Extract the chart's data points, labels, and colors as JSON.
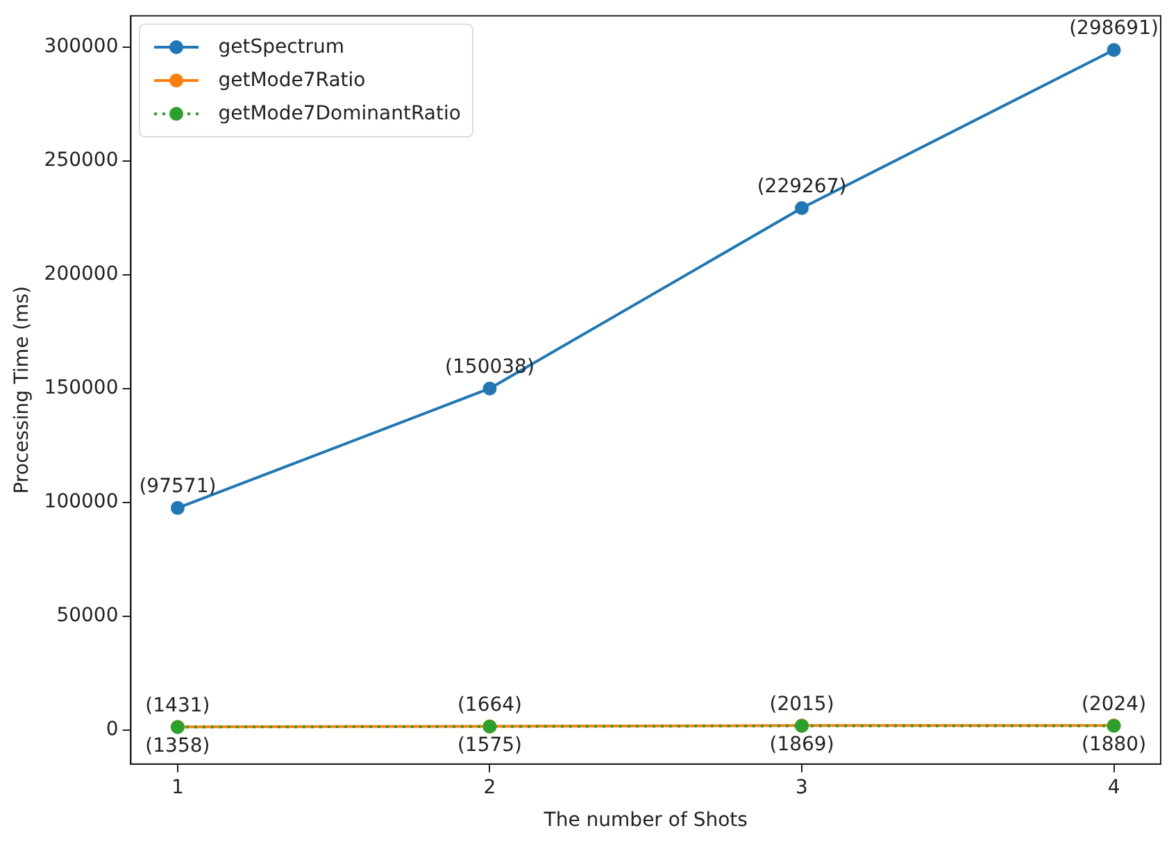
{
  "chart_data": {
    "type": "line",
    "xlabel": "The number of Shots",
    "ylabel": "Processing Time (ms)",
    "x": [
      1,
      2,
      3,
      4
    ],
    "series": [
      {
        "name": "getSpectrum",
        "color": "#1f77b4",
        "values": [
          97571,
          150038,
          229267,
          298691
        ],
        "value_labels": [
          "(97571)",
          "(150038)",
          "(229267)",
          "(298691)"
        ]
      },
      {
        "name": "getMode7Ratio",
        "color": "#ff7f0e",
        "values": [
          1431,
          1664,
          2015,
          2024
        ],
        "value_labels": [
          "(1431)",
          "(1664)",
          "(2015)",
          "(2024)"
        ]
      },
      {
        "name": "getMode7DominantRatio",
        "color": "#2ca02c",
        "values": [
          1358,
          1575,
          1869,
          1880
        ],
        "value_labels": [
          "(1358)",
          "(1575)",
          "(1869)",
          "(1880)"
        ],
        "line_style": "dotted"
      }
    ],
    "xlim": [
      0.85,
      4.15
    ],
    "xticks": [
      1,
      2,
      3,
      4
    ],
    "ylim": [
      -14900,
      313700
    ],
    "yticks": [
      0,
      50000,
      100000,
      150000,
      200000,
      250000,
      300000
    ],
    "grid": false,
    "legend": "top left",
    "marker": "circle",
    "line_style": "solid"
  }
}
